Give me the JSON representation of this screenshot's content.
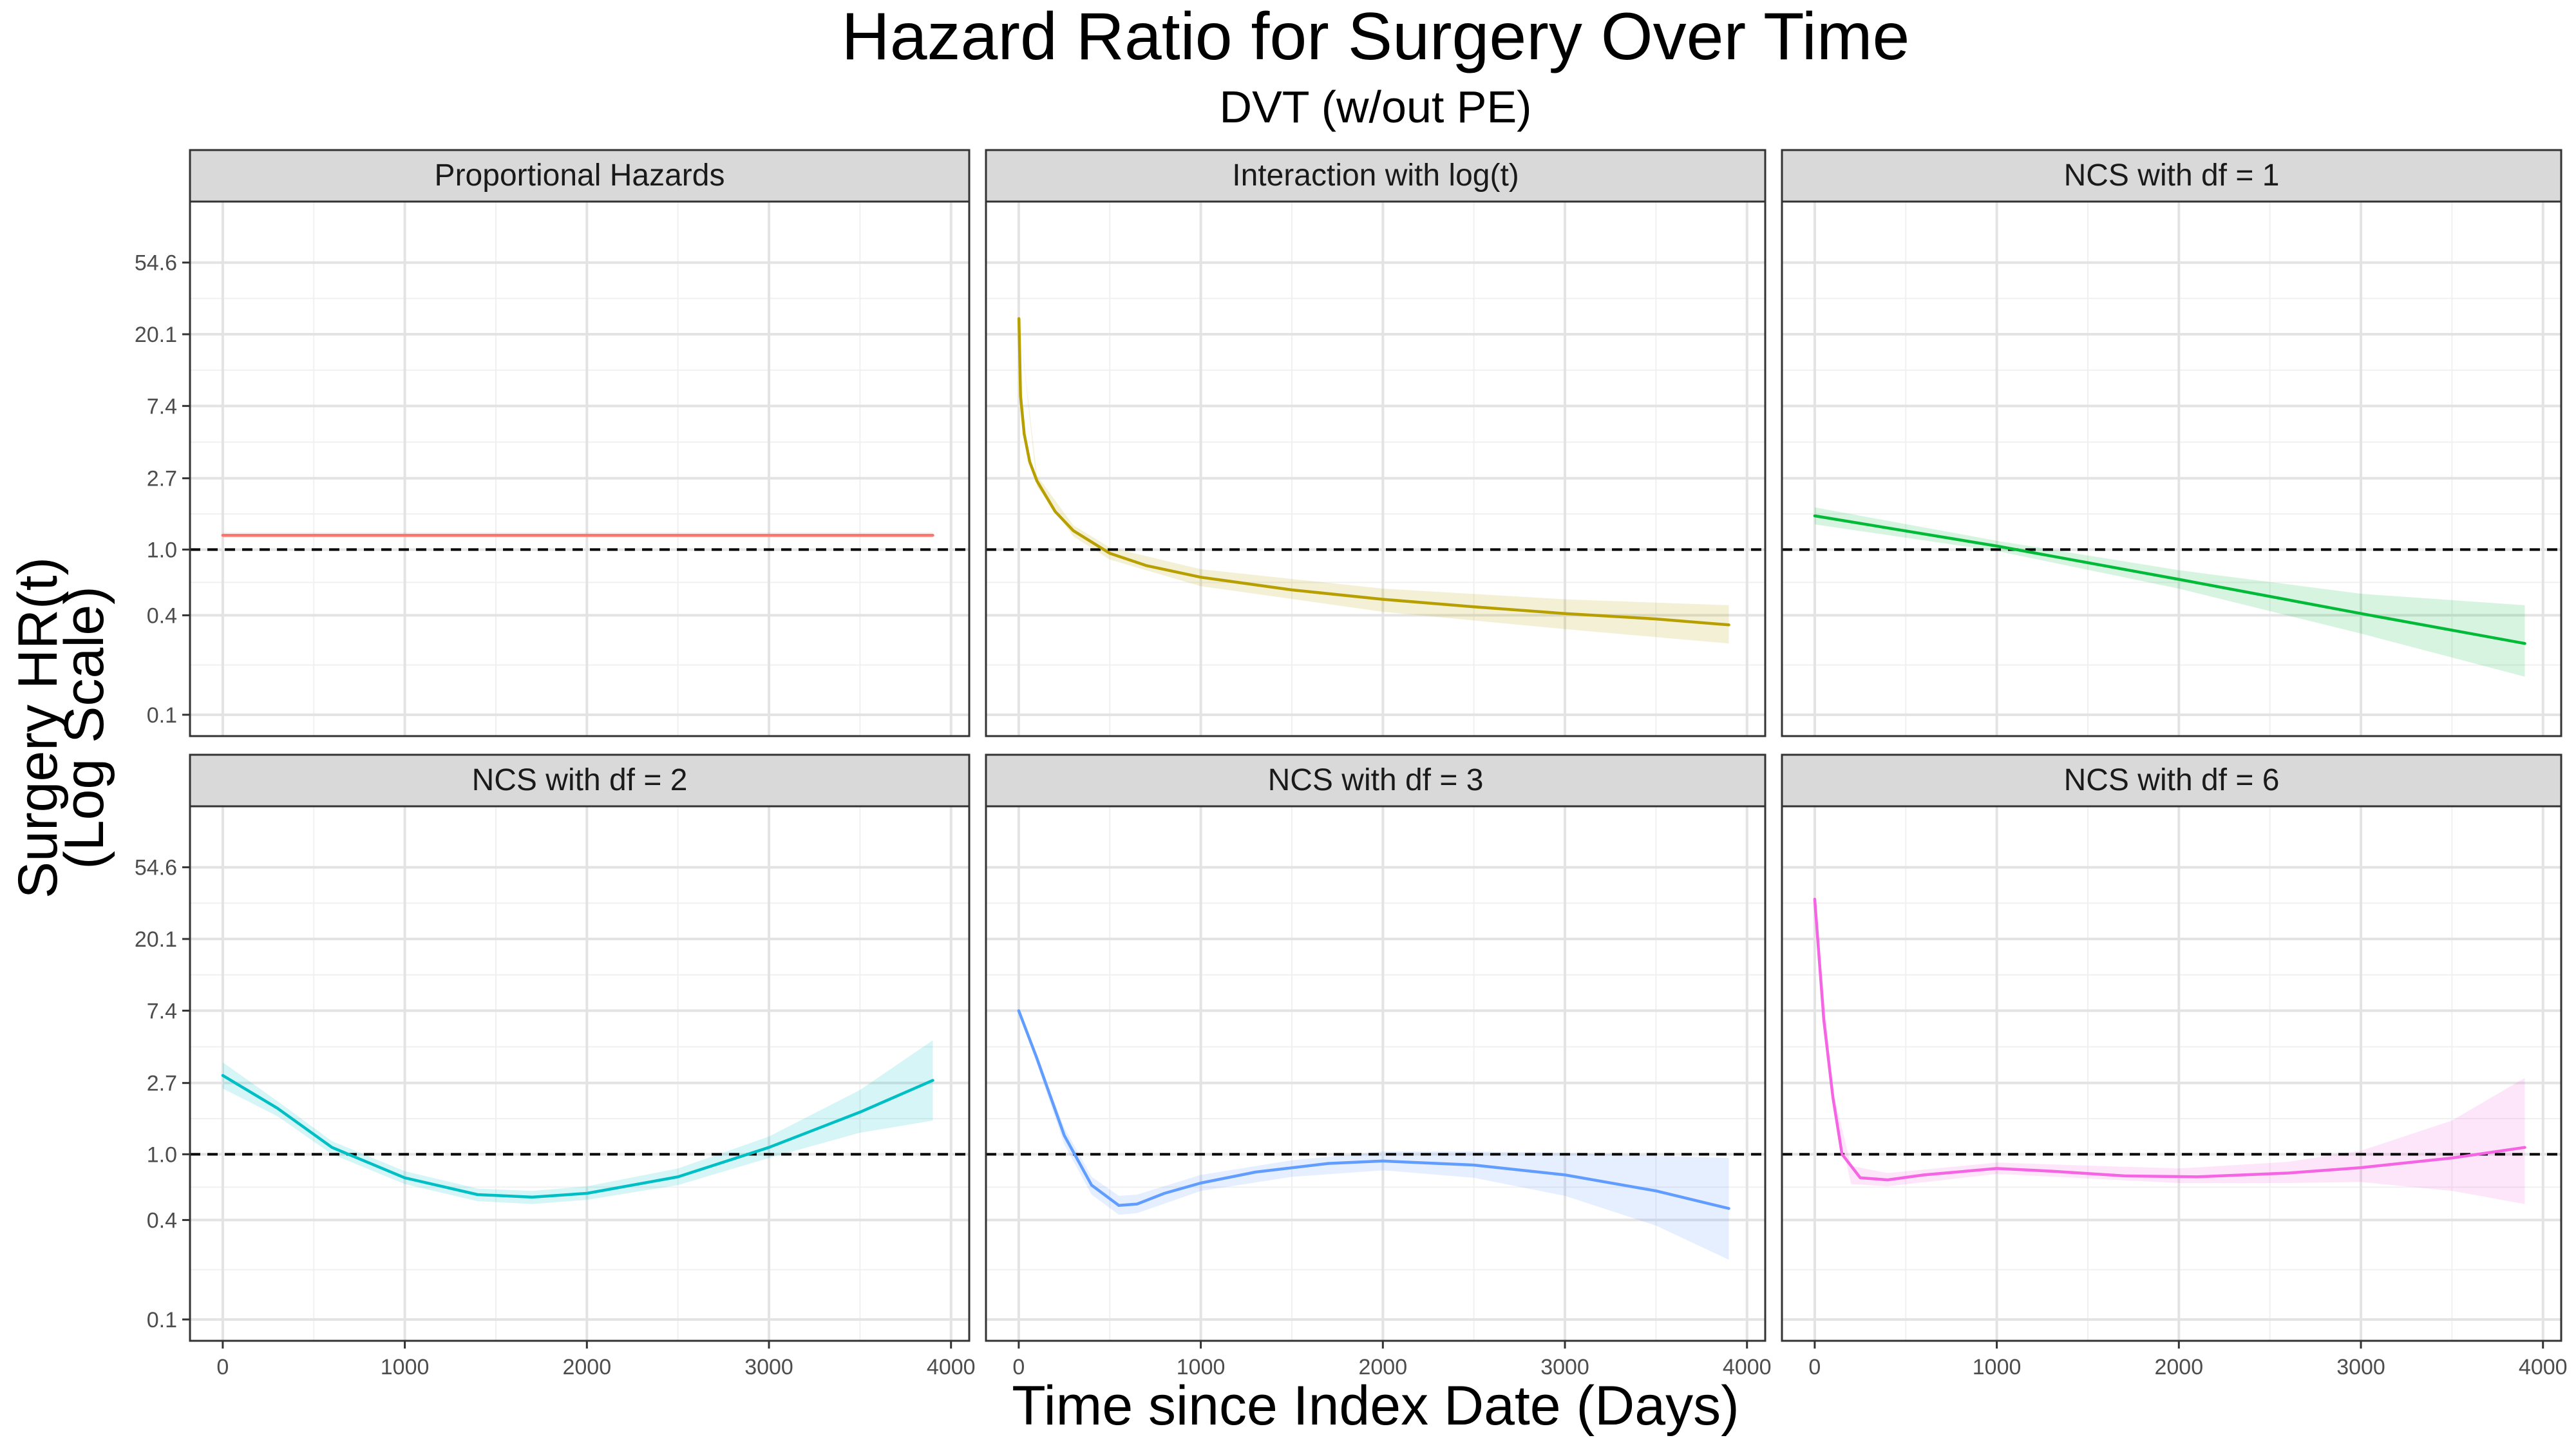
{
  "chart_data": {
    "type": "line",
    "title": "Hazard Ratio for Surgery Over Time",
    "subtitle": "DVT (w/out PE)",
    "xlabel": "Time since Index Date (Days)",
    "ylabel_line1": "Surgery HR(t)",
    "ylabel_line2": "(Log Scale)",
    "y_scale": "log",
    "reference_line": 1.0,
    "x_ticks": [
      0,
      1000,
      2000,
      3000,
      4000
    ],
    "y_ticks": [
      0.1,
      0.4,
      1.0,
      2.7,
      7.4,
      20.1,
      54.6
    ],
    "y_tick_labels": [
      "0.1",
      "0.4",
      "1.0",
      "2.7",
      "7.4",
      "20.1",
      "54.6"
    ],
    "xlim": [
      -180,
      4100
    ],
    "ylim_log": [
      -2.6,
      4.85
    ],
    "grid": true,
    "panels": [
      {
        "title": "Proportional Hazards",
        "color": "#F8766D",
        "points": [
          [
            0,
            1.22
          ],
          [
            3900,
            1.22
          ]
        ],
        "band": [
          [
            0,
            1.18,
            1.27
          ],
          [
            3900,
            1.18,
            1.27
          ]
        ]
      },
      {
        "title": "Interaction with log(t)",
        "color": "#B79F00",
        "points": [
          [
            1,
            25
          ],
          [
            10,
            8.5
          ],
          [
            30,
            5.0
          ],
          [
            60,
            3.4
          ],
          [
            100,
            2.6
          ],
          [
            200,
            1.7
          ],
          [
            300,
            1.3
          ],
          [
            500,
            0.95
          ],
          [
            700,
            0.8
          ],
          [
            1000,
            0.68
          ],
          [
            1500,
            0.57
          ],
          [
            2000,
            0.5
          ],
          [
            2500,
            0.45
          ],
          [
            3000,
            0.41
          ],
          [
            3500,
            0.38
          ],
          [
            3900,
            0.35
          ]
        ],
        "band": [
          [
            1,
            25,
            25
          ],
          [
            100,
            2.4,
            2.8
          ],
          [
            300,
            1.2,
            1.4
          ],
          [
            500,
            0.87,
            1.03
          ],
          [
            1000,
            0.6,
            0.76
          ],
          [
            2000,
            0.42,
            0.58
          ],
          [
            3000,
            0.33,
            0.5
          ],
          [
            3900,
            0.27,
            0.46
          ]
        ]
      },
      {
        "title": "NCS with df = 1",
        "color": "#00BA38",
        "points": [
          [
            0,
            1.6
          ],
          [
            1000,
            1.05
          ],
          [
            2000,
            0.66
          ],
          [
            3000,
            0.41
          ],
          [
            3900,
            0.27
          ]
        ],
        "band": [
          [
            0,
            1.42,
            1.8
          ],
          [
            1000,
            0.98,
            1.13
          ],
          [
            2000,
            0.58,
            0.75
          ],
          [
            3000,
            0.31,
            0.54
          ],
          [
            3900,
            0.17,
            0.46
          ]
        ]
      },
      {
        "title": "NCS with df = 2",
        "color": "#00BFC4",
        "points": [
          [
            0,
            3.0
          ],
          [
            300,
            1.9
          ],
          [
            600,
            1.1
          ],
          [
            1000,
            0.72
          ],
          [
            1400,
            0.57
          ],
          [
            1700,
            0.55
          ],
          [
            2000,
            0.58
          ],
          [
            2500,
            0.73
          ],
          [
            3000,
            1.1
          ],
          [
            3500,
            1.8
          ],
          [
            3900,
            2.8
          ]
        ],
        "band": [
          [
            0,
            2.5,
            3.6
          ],
          [
            300,
            1.7,
            2.1
          ],
          [
            600,
            1.0,
            1.2
          ],
          [
            1000,
            0.66,
            0.79
          ],
          [
            1400,
            0.52,
            0.62
          ],
          [
            1700,
            0.5,
            0.6
          ],
          [
            2000,
            0.53,
            0.64
          ],
          [
            2500,
            0.65,
            0.82
          ],
          [
            3000,
            0.95,
            1.28
          ],
          [
            3500,
            1.35,
            2.45
          ],
          [
            3900,
            1.6,
            4.9
          ]
        ]
      },
      {
        "title": "NCS with df = 3",
        "color": "#619CFF",
        "points": [
          [
            0,
            7.4
          ],
          [
            100,
            3.8
          ],
          [
            250,
            1.3
          ],
          [
            400,
            0.65
          ],
          [
            550,
            0.49
          ],
          [
            650,
            0.5
          ],
          [
            800,
            0.58
          ],
          [
            1000,
            0.67
          ],
          [
            1300,
            0.78
          ],
          [
            1700,
            0.88
          ],
          [
            2000,
            0.91
          ],
          [
            2500,
            0.86
          ],
          [
            3000,
            0.75
          ],
          [
            3500,
            0.6
          ],
          [
            3900,
            0.47
          ]
        ],
        "band": [
          [
            0,
            7.4,
            7.4
          ],
          [
            250,
            1.15,
            1.45
          ],
          [
            400,
            0.57,
            0.73
          ],
          [
            550,
            0.43,
            0.56
          ],
          [
            650,
            0.44,
            0.57
          ],
          [
            1000,
            0.6,
            0.75
          ],
          [
            1500,
            0.73,
            0.92
          ],
          [
            2000,
            0.8,
            1.04
          ],
          [
            2500,
            0.72,
            1.04
          ],
          [
            3000,
            0.56,
            1.02
          ],
          [
            3500,
            0.37,
            0.98
          ],
          [
            3900,
            0.23,
            0.95
          ]
        ]
      },
      {
        "title": "NCS with df = 6",
        "color": "#F564E3",
        "points": [
          [
            0,
            35
          ],
          [
            50,
            6.5
          ],
          [
            100,
            2.2
          ],
          [
            150,
            1.0
          ],
          [
            250,
            0.72
          ],
          [
            400,
            0.7
          ],
          [
            600,
            0.75
          ],
          [
            1000,
            0.82
          ],
          [
            1300,
            0.79
          ],
          [
            1700,
            0.74
          ],
          [
            2100,
            0.73
          ],
          [
            2600,
            0.77
          ],
          [
            3000,
            0.83
          ],
          [
            3500,
            0.95
          ],
          [
            3900,
            1.1
          ]
        ],
        "band": [
          [
            0,
            35,
            35
          ],
          [
            100,
            2.0,
            2.4
          ],
          [
            200,
            0.66,
            0.85
          ],
          [
            400,
            0.64,
            0.77
          ],
          [
            1000,
            0.76,
            0.89
          ],
          [
            2000,
            0.67,
            0.82
          ],
          [
            2600,
            0.67,
            0.9
          ],
          [
            3000,
            0.68,
            1.05
          ],
          [
            3500,
            0.6,
            1.6
          ],
          [
            3900,
            0.5,
            2.9
          ]
        ]
      }
    ]
  }
}
